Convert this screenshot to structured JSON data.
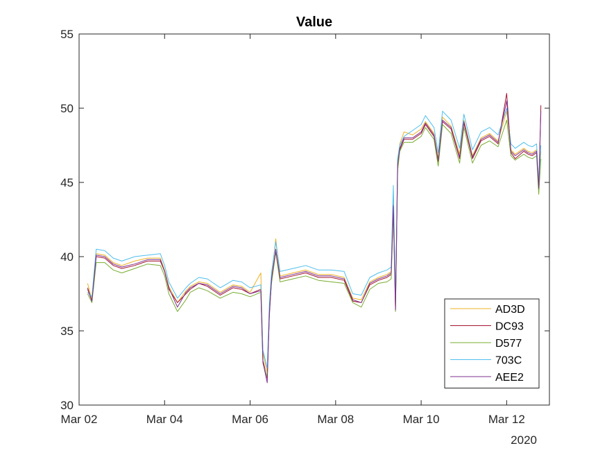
{
  "chart_data": {
    "type": "line",
    "title": "Value",
    "xlabel": "",
    "ylabel": "",
    "x_secondary_label": "2020",
    "ylim": [
      30,
      55
    ],
    "yticks": [
      30,
      35,
      40,
      45,
      50,
      55
    ],
    "xlim": [
      0,
      11
    ],
    "xticks": [
      {
        "x": 0,
        "label": "Mar 02"
      },
      {
        "x": 2,
        "label": "Mar 04"
      },
      {
        "x": 4,
        "label": "Mar 06"
      },
      {
        "x": 6,
        "label": "Mar 08"
      },
      {
        "x": 8,
        "label": "Mar 10"
      },
      {
        "x": 10,
        "label": "Mar 12"
      }
    ],
    "grid": false,
    "legend_position": "bottom-right",
    "x": [
      0.2,
      0.3,
      0.4,
      0.6,
      0.8,
      1.0,
      1.3,
      1.6,
      1.9,
      2.0,
      2.1,
      2.3,
      2.5,
      2.6,
      2.8,
      3.0,
      3.3,
      3.6,
      3.8,
      4.0,
      4.25,
      4.3,
      4.4,
      4.45,
      4.5,
      4.6,
      4.7,
      5.0,
      5.3,
      5.6,
      5.9,
      6.2,
      6.4,
      6.6,
      6.8,
      7.0,
      7.2,
      7.3,
      7.35,
      7.4,
      7.45,
      7.5,
      7.6,
      7.8,
      8.0,
      8.1,
      8.3,
      8.4,
      8.5,
      8.7,
      8.9,
      9.0,
      9.2,
      9.4,
      9.6,
      9.8,
      10.0,
      10.1,
      10.2,
      10.4,
      10.5,
      10.6,
      10.7,
      10.75,
      10.8
    ],
    "series": [
      {
        "name": "AD3D",
        "color": "#EDB120",
        "values": [
          38.2,
          37.1,
          40.2,
          40.1,
          39.6,
          39.4,
          39.7,
          39.9,
          39.9,
          39.1,
          38.0,
          36.9,
          37.7,
          38.0,
          38.3,
          38.2,
          37.6,
          38.1,
          38.0,
          37.6,
          38.9,
          33.5,
          32.2,
          36.5,
          38.6,
          41.2,
          38.7,
          38.9,
          39.1,
          38.8,
          38.8,
          38.6,
          37.2,
          37.1,
          38.3,
          38.6,
          38.8,
          39.0,
          44.2,
          36.7,
          46.5,
          47.6,
          48.4,
          48.2,
          48.6,
          49.1,
          48.3,
          46.6,
          49.4,
          48.8,
          46.9,
          49.2,
          46.8,
          48.0,
          48.3,
          47.8,
          49.8,
          47.2,
          46.9,
          47.3,
          47.1,
          47.0,
          47.2,
          44.5,
          47.1
        ]
      },
      {
        "name": "DC93",
        "color": "#A2142F",
        "values": [
          37.9,
          37.0,
          40.0,
          39.9,
          39.4,
          39.2,
          39.4,
          39.7,
          39.7,
          39.0,
          37.8,
          36.9,
          37.5,
          37.8,
          38.2,
          38.0,
          37.4,
          37.9,
          37.8,
          37.5,
          37.8,
          33.0,
          31.8,
          36.0,
          38.4,
          40.5,
          38.5,
          38.7,
          38.9,
          38.6,
          38.6,
          38.4,
          37.0,
          36.9,
          38.1,
          38.4,
          38.6,
          38.8,
          43.5,
          36.5,
          46.0,
          47.2,
          47.9,
          47.9,
          48.3,
          48.9,
          48.1,
          46.4,
          49.1,
          48.6,
          46.6,
          49.0,
          46.6,
          47.8,
          48.1,
          47.6,
          51.0,
          47.0,
          46.6,
          47.1,
          46.9,
          46.8,
          47.0,
          44.5,
          50.2
        ]
      },
      {
        "name": "D577",
        "color": "#77AC30",
        "values": [
          37.5,
          36.9,
          39.6,
          39.6,
          39.1,
          38.9,
          39.2,
          39.5,
          39.4,
          38.7,
          37.5,
          36.3,
          37.1,
          37.6,
          37.9,
          37.7,
          37.2,
          37.6,
          37.5,
          37.3,
          37.6,
          32.8,
          31.9,
          36.3,
          38.2,
          40.3,
          38.3,
          38.5,
          38.7,
          38.4,
          38.3,
          38.2,
          36.9,
          36.6,
          37.8,
          38.2,
          38.3,
          38.5,
          43.0,
          36.3,
          45.8,
          47.1,
          47.7,
          47.7,
          48.1,
          48.7,
          47.9,
          46.1,
          48.9,
          48.3,
          46.3,
          48.7,
          46.3,
          47.5,
          47.8,
          47.4,
          49.2,
          46.8,
          46.5,
          46.9,
          46.7,
          46.6,
          46.8,
          44.2,
          46.6
        ]
      },
      {
        "name": "703C",
        "color": "#4DBEEE",
        "values": [
          37.6,
          37.3,
          40.5,
          40.4,
          39.9,
          39.7,
          40.0,
          40.1,
          40.2,
          39.4,
          38.3,
          37.2,
          37.9,
          38.2,
          38.6,
          38.5,
          37.9,
          38.4,
          38.3,
          37.9,
          38.1,
          33.7,
          32.5,
          36.8,
          38.9,
          41.0,
          39.0,
          39.2,
          39.4,
          39.1,
          39.1,
          39.0,
          37.5,
          37.4,
          38.6,
          38.9,
          39.1,
          39.3,
          44.8,
          37.0,
          46.6,
          47.5,
          48.1,
          48.5,
          48.9,
          49.5,
          48.7,
          47.0,
          49.8,
          49.2,
          47.3,
          49.6,
          47.2,
          48.4,
          48.7,
          48.2,
          50.0,
          47.6,
          47.3,
          47.7,
          47.5,
          47.4,
          47.6,
          44.9,
          47.5
        ]
      },
      {
        "name": "AEE2",
        "color": "#7E2F8E",
        "values": [
          37.8,
          37.0,
          40.1,
          40.0,
          39.5,
          39.3,
          39.5,
          39.8,
          39.8,
          39.0,
          37.9,
          36.6,
          37.6,
          37.9,
          38.2,
          38.1,
          37.5,
          38.0,
          37.9,
          37.5,
          37.7,
          32.9,
          31.5,
          36.2,
          38.5,
          40.4,
          38.6,
          38.8,
          39.0,
          38.7,
          38.7,
          38.5,
          37.1,
          36.9,
          38.2,
          38.5,
          38.7,
          38.9,
          43.4,
          36.4,
          46.2,
          47.3,
          48.0,
          48.0,
          48.4,
          49.0,
          48.2,
          46.5,
          49.2,
          48.7,
          46.7,
          49.1,
          46.7,
          47.9,
          48.2,
          47.7,
          50.5,
          47.1,
          46.8,
          47.2,
          47.0,
          46.9,
          47.1,
          44.6,
          49.8
        ]
      }
    ]
  }
}
